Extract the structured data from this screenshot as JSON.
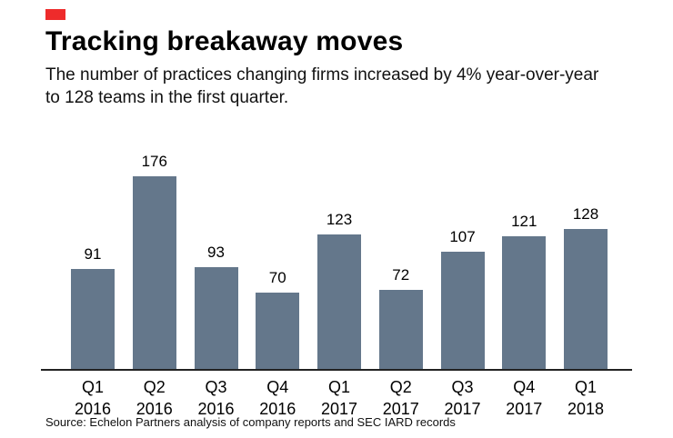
{
  "header": {
    "title": "Tracking breakaway moves",
    "subtitle": "The number of practices changing firms increased by 4% year-over-year to 128 teams in the first quarter.",
    "accent_color": "#ee2b2b"
  },
  "source_line": "Source: Echelon Partners analysis of company reports and SEC IARD records",
  "chart_data": {
    "type": "bar",
    "categories": [
      "Q1 2016",
      "Q2 2016",
      "Q3 2016",
      "Q4 2016",
      "Q1 2017",
      "Q2 2017",
      "Q3 2017",
      "Q4 2017",
      "Q1 2018"
    ],
    "values": [
      91,
      176,
      93,
      70,
      123,
      72,
      107,
      121,
      128
    ],
    "title": "Tracking breakaway moves",
    "xlabel": "",
    "ylabel": "",
    "ylim": [
      0,
      176
    ],
    "bar_color": "#64778b",
    "grid": false,
    "value_labels": true,
    "legend": "none"
  }
}
